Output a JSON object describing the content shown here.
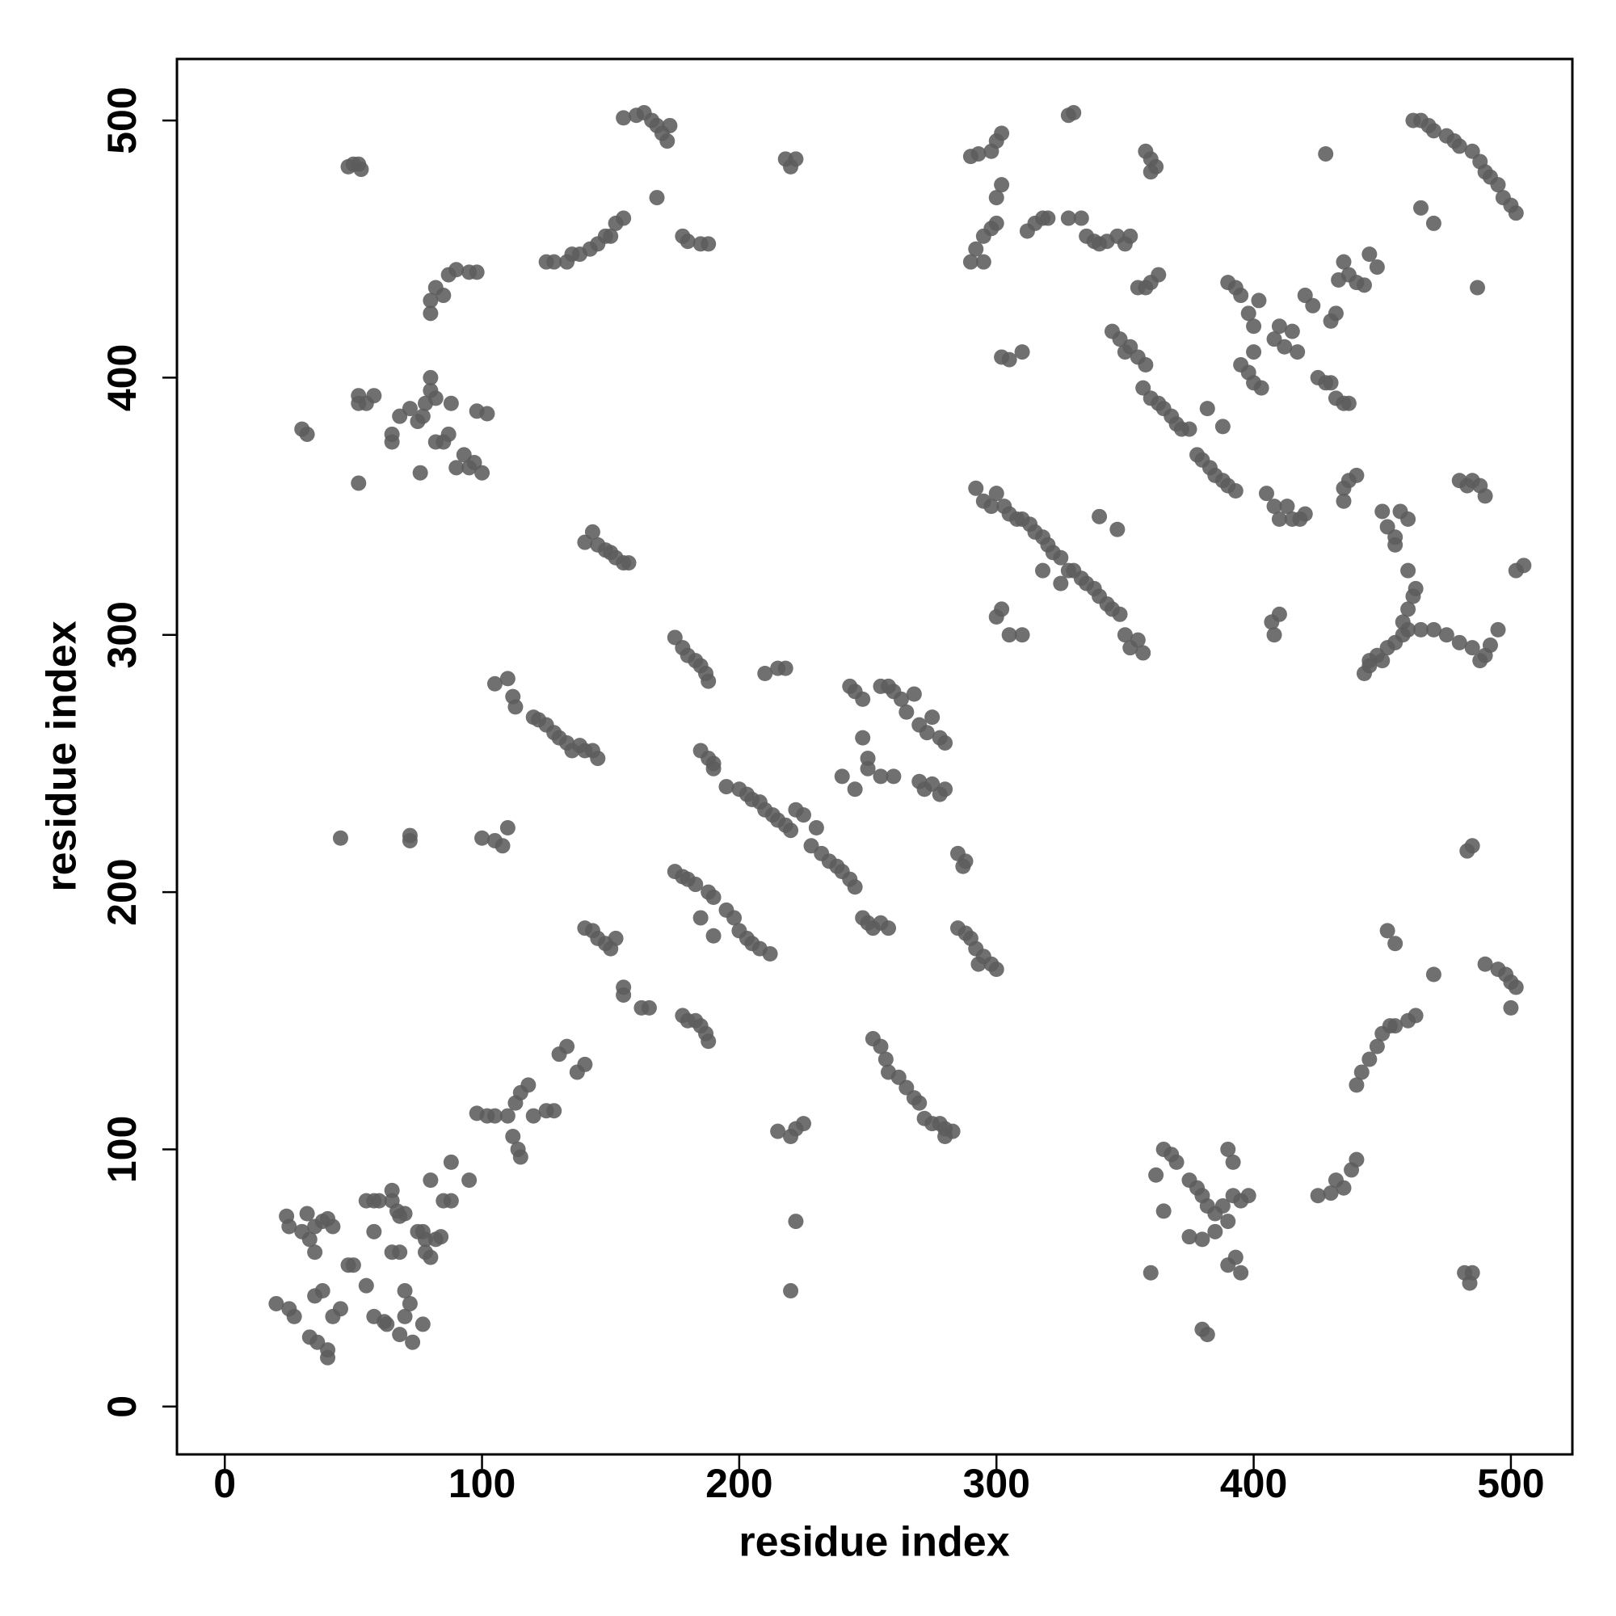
{
  "chart_data": {
    "type": "scatter",
    "x_label": "residue index",
    "y_label": "residue index",
    "color": "#5c5c5c",
    "xlim": [
      -18.6,
      523.9
    ],
    "ylim": [
      -18.6,
      523.9
    ],
    "xticks": [
      0,
      100,
      200,
      300,
      400,
      500
    ],
    "yticks": [
      0,
      100,
      200,
      300,
      400,
      500
    ],
    "x": [
      20,
      25,
      27,
      24,
      25,
      30,
      32,
      33,
      35,
      35,
      38,
      40,
      42,
      35,
      38,
      33,
      36,
      40,
      40,
      45,
      42,
      48,
      50,
      55,
      55,
      58,
      60,
      58,
      58,
      62,
      63,
      65,
      65,
      67,
      68,
      70,
      65,
      68,
      70,
      70,
      72,
      68,
      73,
      75,
      77,
      78,
      77,
      78,
      80,
      80,
      82,
      84,
      85,
      88,
      88,
      95,
      98,
      102,
      105,
      110,
      112,
      114,
      115,
      113,
      115,
      118,
      120,
      125,
      128,
      130,
      133,
      137,
      140,
      140,
      143,
      145,
      148,
      150,
      152,
      155,
      155,
      162,
      165,
      100,
      105,
      108,
      110,
      45,
      72,
      72,
      105,
      110,
      112,
      113,
      120,
      122,
      125,
      128,
      130,
      133,
      135,
      138,
      140,
      143,
      145,
      140,
      143,
      145,
      148,
      150,
      152,
      155,
      157,
      30,
      32,
      52,
      52,
      52,
      55,
      58,
      65,
      65,
      68,
      72,
      75,
      77,
      78,
      80,
      80,
      82,
      85,
      87,
      88,
      90,
      93,
      95,
      97,
      100,
      98,
      102,
      76,
      82,
      80,
      80,
      82,
      85,
      87,
      90,
      95,
      98,
      48,
      50,
      52,
      53,
      125,
      128,
      133,
      135,
      138,
      142,
      145,
      148,
      150,
      152,
      155,
      155,
      160,
      163,
      166,
      168,
      170,
      172,
      173,
      168,
      178,
      180,
      185,
      188,
      218,
      220,
      222,
      175,
      178,
      180,
      183,
      185,
      187,
      188,
      210,
      215,
      218,
      185,
      188,
      190,
      190,
      195,
      200,
      203,
      205,
      208,
      210,
      213,
      215,
      218,
      220,
      222,
      225,
      228,
      230,
      232,
      235,
      238,
      240,
      243,
      245,
      175,
      178,
      180,
      183,
      185,
      188,
      190,
      195,
      198,
      200,
      203,
      205,
      208,
      212,
      190,
      178,
      180,
      183,
      185,
      187,
      188,
      243,
      245,
      248,
      240,
      245,
      248,
      250,
      250,
      255,
      258,
      260,
      263,
      265,
      268,
      270,
      273,
      275,
      278,
      280,
      255,
      260,
      270,
      272,
      275,
      278,
      280,
      248,
      250,
      252,
      255,
      258,
      252,
      255,
      257,
      258,
      262,
      265,
      268,
      270,
      272,
      275,
      278,
      280,
      283,
      280,
      285,
      287,
      288,
      285,
      288,
      290,
      292,
      295,
      298,
      300,
      293,
      215,
      220,
      222,
      225,
      222,
      220,
      290,
      295,
      292,
      295,
      298,
      300,
      300,
      302,
      298,
      293,
      290,
      300,
      302,
      328,
      330,
      302,
      305,
      310,
      312,
      315,
      318,
      320,
      328,
      333,
      335,
      338,
      340,
      343,
      347,
      350,
      352,
      355,
      358,
      360,
      363,
      345,
      348,
      350,
      352,
      355,
      358,
      358,
      360,
      362,
      360,
      292,
      295,
      298,
      300,
      303,
      305,
      308,
      310,
      313,
      315,
      318,
      320,
      322,
      325,
      328,
      330,
      333,
      335,
      338,
      340,
      343,
      345,
      348,
      350,
      352,
      355,
      357,
      318,
      325,
      340,
      347,
      300,
      302,
      305,
      310,
      357,
      360,
      363,
      365,
      368,
      370,
      372,
      375,
      378,
      380,
      383,
      385,
      388,
      390,
      393,
      382,
      388,
      390,
      393,
      395,
      398,
      400,
      402,
      395,
      398,
      400,
      403,
      400,
      408,
      410,
      412,
      415,
      417,
      420,
      423,
      425,
      428,
      430,
      432,
      433,
      435,
      437,
      440,
      443,
      445,
      448,
      430,
      432,
      435,
      437,
      405,
      408,
      410,
      413,
      415,
      418,
      420,
      407,
      408,
      410,
      435,
      437,
      440,
      435,
      428,
      450,
      452,
      455,
      457,
      460,
      455,
      460,
      462,
      460,
      458,
      463,
      445,
      448,
      450,
      452,
      455,
      458,
      460,
      465,
      470,
      475,
      480,
      485,
      488,
      490,
      492,
      495,
      443,
      445,
      480,
      483,
      485,
      488,
      490,
      502,
      505,
      462,
      465,
      468,
      470,
      475,
      478,
      480,
      485,
      488,
      490,
      492,
      495,
      497,
      500,
      502,
      465,
      470,
      487,
      483,
      485,
      452,
      455,
      470,
      490,
      495,
      498,
      500,
      502,
      500,
      440,
      442,
      445,
      448,
      450,
      453,
      455,
      460,
      463,
      362,
      365,
      368,
      370,
      375,
      378,
      380,
      382,
      385,
      388,
      390,
      392,
      395,
      398,
      390,
      392,
      385,
      380,
      375,
      365,
      360,
      380,
      382,
      390,
      393,
      395,
      425,
      430,
      432,
      435,
      438,
      440,
      482,
      484,
      485
    ],
    "values": [
      40,
      38,
      35,
      74,
      70,
      68,
      75,
      65,
      60,
      70,
      72,
      73,
      70,
      43,
      45,
      27,
      25,
      22,
      19,
      38,
      35,
      55,
      55,
      47,
      80,
      80,
      80,
      68,
      35,
      33,
      32,
      84,
      80,
      76,
      74,
      75,
      60,
      60,
      35,
      45,
      40,
      28,
      25,
      68,
      68,
      65,
      32,
      60,
      58,
      88,
      65,
      66,
      80,
      80,
      95,
      88,
      114,
      113,
      113,
      113,
      105,
      100,
      97,
      118,
      122,
      125,
      113,
      115,
      115,
      137,
      140,
      130,
      133,
      186,
      185,
      182,
      180,
      178,
      182,
      163,
      160,
      155,
      155,
      221,
      220,
      218,
      225,
      221,
      222,
      220,
      281,
      283,
      276,
      272,
      268,
      267,
      265,
      262,
      260,
      258,
      255,
      257,
      255,
      255,
      252,
      336,
      340,
      335,
      333,
      332,
      330,
      328,
      328,
      380,
      378,
      359,
      393,
      390,
      390,
      393,
      375,
      378,
      385,
      388,
      383,
      385,
      390,
      395,
      400,
      392,
      375,
      378,
      390,
      365,
      370,
      365,
      367,
      363,
      387,
      386,
      363,
      375,
      425,
      430,
      435,
      432,
      440,
      442,
      441,
      441,
      482,
      483,
      483,
      481,
      445,
      445,
      445,
      448,
      448,
      450,
      452,
      455,
      455,
      460,
      462,
      501,
      502,
      503,
      500,
      498,
      495,
      492,
      498,
      470,
      455,
      453,
      452,
      452,
      485,
      482,
      485,
      299,
      295,
      292,
      290,
      288,
      285,
      282,
      285,
      287,
      287,
      255,
      252,
      250,
      248,
      241,
      240,
      238,
      236,
      235,
      232,
      230,
      228,
      226,
      224,
      232,
      230,
      218,
      225,
      215,
      212,
      210,
      208,
      205,
      202,
      208,
      206,
      205,
      203,
      190,
      200,
      198,
      193,
      190,
      185,
      182,
      180,
      178,
      176,
      183,
      152,
      150,
      150,
      148,
      145,
      142,
      280,
      278,
      275,
      245,
      240,
      260,
      252,
      248,
      280,
      280,
      278,
      275,
      270,
      277,
      265,
      262,
      268,
      260,
      258,
      245,
      245,
      243,
      240,
      242,
      238,
      240,
      190,
      188,
      186,
      188,
      186,
      143,
      140,
      135,
      130,
      128,
      124,
      120,
      118,
      112,
      110,
      110,
      108,
      107,
      105,
      215,
      210,
      212,
      186,
      184,
      182,
      178,
      175,
      172,
      170,
      172,
      107,
      105,
      108,
      110,
      72,
      45,
      445,
      445,
      450,
      455,
      458,
      460,
      470,
      475,
      488,
      487,
      486,
      492,
      495,
      502,
      503,
      408,
      407,
      410,
      457,
      460,
      462,
      462,
      462,
      462,
      455,
      453,
      452,
      453,
      455,
      452,
      455,
      435,
      435,
      437,
      440,
      418,
      415,
      410,
      412,
      408,
      405,
      488,
      485,
      482,
      480,
      357,
      352,
      350,
      355,
      350,
      347,
      345,
      345,
      343,
      340,
      338,
      335,
      332,
      330,
      325,
      325,
      322,
      320,
      318,
      315,
      312,
      310,
      308,
      300,
      295,
      298,
      293,
      325,
      320,
      346,
      341,
      307,
      310,
      300,
      300,
      396,
      392,
      390,
      388,
      385,
      382,
      380,
      380,
      370,
      368,
      365,
      362,
      360,
      358,
      356,
      388,
      381,
      437,
      435,
      432,
      425,
      420,
      430,
      405,
      402,
      398,
      396,
      410,
      415,
      420,
      412,
      418,
      410,
      432,
      428,
      400,
      398,
      422,
      425,
      438,
      445,
      440,
      437,
      436,
      448,
      443,
      398,
      392,
      390,
      390,
      355,
      350,
      345,
      350,
      345,
      345,
      347,
      305,
      300,
      308,
      357,
      360,
      362,
      352,
      487,
      348,
      342,
      338,
      348,
      345,
      335,
      325,
      315,
      310,
      305,
      318,
      290,
      292,
      290,
      295,
      297,
      300,
      302,
      302,
      302,
      300,
      297,
      295,
      290,
      292,
      296,
      302,
      285,
      288,
      360,
      358,
      360,
      358,
      354,
      325,
      327,
      500,
      500,
      498,
      496,
      494,
      492,
      490,
      488,
      484,
      480,
      478,
      475,
      470,
      467,
      464,
      466,
      460,
      435,
      216,
      218,
      185,
      180,
      168,
      172,
      170,
      168,
      165,
      163,
      155,
      125,
      130,
      135,
      140,
      145,
      148,
      148,
      150,
      152,
      90,
      100,
      98,
      95,
      88,
      85,
      82,
      78,
      75,
      78,
      72,
      82,
      80,
      82,
      100,
      95,
      68,
      65,
      66,
      76,
      52,
      30,
      28,
      55,
      58,
      52,
      82,
      83,
      88,
      85,
      92,
      96,
      52,
      48,
      52
    ]
  }
}
